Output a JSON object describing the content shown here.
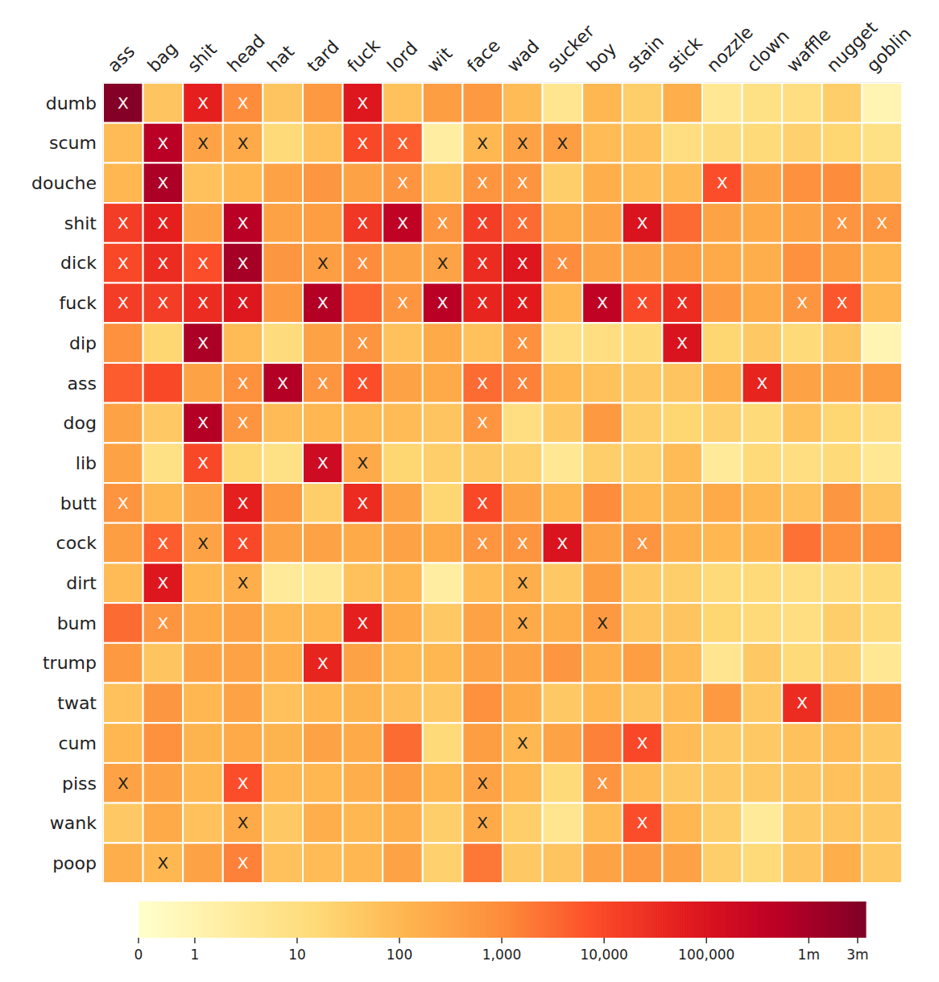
{
  "chart_data": {
    "type": "heatmap",
    "x": [
      "ass",
      "bag",
      "shit",
      "head",
      "hat",
      "tard",
      "fuck",
      "lord",
      "wit",
      "face",
      "wad",
      "sucker",
      "boy",
      "stain",
      "stick",
      "nozzle",
      "clown",
      "waffle",
      "nugget",
      "goblin"
    ],
    "y": [
      "dumb",
      "scum",
      "douche",
      "shit",
      "dick",
      "fuck",
      "dip",
      "ass",
      "dog",
      "lib",
      "butt",
      "cock",
      "dirt",
      "bum",
      "trump",
      "twat",
      "cum",
      "piss",
      "wank",
      "poop"
    ],
    "values": [
      [
        3000000,
        50,
        50000,
        1000,
        50,
        500,
        80000,
        60,
        400,
        500,
        80,
        5,
        100,
        30,
        150,
        4,
        8,
        10,
        30,
        1
      ],
      [
        80,
        500000,
        300,
        200,
        15,
        60,
        10000,
        5000,
        2,
        100,
        300,
        400,
        80,
        60,
        10,
        12,
        15,
        25,
        20,
        8
      ],
      [
        100,
        800000,
        60,
        100,
        300,
        600,
        300,
        700,
        60,
        700,
        700,
        30,
        150,
        80,
        80,
        8000,
        300,
        800,
        1000,
        50
      ],
      [
        15000,
        50000,
        300,
        500000,
        300,
        400,
        20000,
        400000,
        700,
        15000,
        3000,
        200,
        300,
        100000,
        3000,
        300,
        200,
        300,
        700,
        700
      ],
      [
        10000,
        30000,
        8000,
        1000000,
        600,
        400,
        1000,
        300,
        300,
        30000,
        80000,
        1000,
        300,
        300,
        400,
        200,
        150,
        800,
        400,
        100
      ],
      [
        15000,
        15000,
        30000,
        80000,
        500,
        600000,
        4000,
        700,
        500000,
        40000,
        60000,
        100,
        400000,
        10000,
        30000,
        500,
        200,
        700,
        6000,
        100
      ],
      [
        800,
        20,
        800000,
        80,
        12,
        300,
        700,
        60,
        200,
        60,
        800,
        10,
        10,
        15,
        100000,
        20,
        40,
        15,
        50,
        1
      ],
      [
        5000,
        10000,
        300,
        800,
        600000,
        700,
        8000,
        300,
        200,
        3000,
        1500,
        100,
        60,
        40,
        50,
        150,
        40000,
        300,
        300,
        400
      ],
      [
        300,
        40,
        600000,
        700,
        80,
        100,
        100,
        80,
        50,
        700,
        10,
        40,
        500,
        30,
        20,
        25,
        15,
        60,
        20,
        10
      ],
      [
        300,
        8,
        10000,
        20,
        8,
        200000,
        200,
        20,
        30,
        40,
        25,
        4,
        30,
        30,
        80,
        3,
        15,
        10,
        15,
        4
      ],
      [
        700,
        100,
        300,
        50000,
        500,
        30,
        30000,
        300,
        20,
        10000,
        300,
        100,
        1000,
        100,
        120,
        200,
        100,
        60,
        600,
        50
      ],
      [
        400,
        5000,
        300,
        10000,
        300,
        300,
        200,
        300,
        200,
        700,
        700,
        100000,
        300,
        700,
        150,
        100,
        100,
        2500,
        800,
        800
      ],
      [
        80,
        80000,
        100,
        150,
        3,
        4,
        60,
        100,
        2,
        80,
        150,
        40,
        400,
        40,
        30,
        15,
        15,
        10,
        12,
        15
      ],
      [
        3000,
        700,
        200,
        300,
        100,
        100,
        50000,
        200,
        40,
        300,
        200,
        150,
        500,
        50,
        50,
        20,
        15,
        10,
        30,
        15
      ],
      [
        500,
        50,
        300,
        300,
        150,
        40000,
        300,
        100,
        100,
        300,
        300,
        600,
        150,
        400,
        80,
        5,
        40,
        15,
        25,
        4
      ],
      [
        60,
        600,
        100,
        300,
        60,
        100,
        120,
        70,
        40,
        800,
        200,
        40,
        100,
        50,
        80,
        500,
        40,
        30000,
        300,
        300
      ],
      [
        100,
        800,
        120,
        200,
        120,
        300,
        200,
        3000,
        15,
        400,
        100,
        300,
        1500,
        10000,
        80,
        40,
        40,
        60,
        80,
        40
      ],
      [
        300,
        300,
        100,
        8000,
        100,
        100,
        150,
        400,
        100,
        300,
        100,
        15,
        700,
        80,
        40,
        40,
        40,
        50,
        60,
        50
      ],
      [
        40,
        200,
        60,
        200,
        40,
        150,
        100,
        150,
        30,
        200,
        30,
        5,
        80,
        8000,
        100,
        30,
        3,
        40,
        50,
        40
      ],
      [
        150,
        100,
        300,
        1500,
        60,
        80,
        100,
        300,
        25,
        2000,
        40,
        50,
        300,
        500,
        300,
        30,
        15,
        50,
        150,
        40
      ]
    ],
    "marked": [
      [
        1,
        0,
        1,
        1,
        0,
        0,
        1,
        0,
        0,
        0,
        0,
        0,
        0,
        0,
        0,
        0,
        0,
        0,
        0,
        0
      ],
      [
        0,
        1,
        1,
        1,
        0,
        0,
        1,
        1,
        0,
        1,
        1,
        1,
        0,
        0,
        0,
        0,
        0,
        0,
        0,
        0
      ],
      [
        0,
        1,
        0,
        0,
        0,
        0,
        0,
        1,
        0,
        1,
        1,
        0,
        0,
        0,
        0,
        1,
        0,
        0,
        0,
        0
      ],
      [
        1,
        1,
        0,
        1,
        0,
        0,
        1,
        1,
        1,
        1,
        1,
        0,
        0,
        1,
        0,
        0,
        0,
        0,
        1,
        1
      ],
      [
        1,
        1,
        1,
        1,
        0,
        1,
        1,
        0,
        1,
        1,
        1,
        1,
        0,
        0,
        0,
        0,
        0,
        0,
        0,
        0
      ],
      [
        1,
        1,
        1,
        1,
        0,
        1,
        0,
        1,
        1,
        1,
        1,
        0,
        1,
        1,
        1,
        0,
        0,
        1,
        1,
        0
      ],
      [
        0,
        0,
        1,
        0,
        0,
        0,
        1,
        0,
        0,
        0,
        1,
        0,
        0,
        0,
        1,
        0,
        0,
        0,
        0,
        0
      ],
      [
        0,
        0,
        0,
        1,
        1,
        1,
        1,
        0,
        0,
        1,
        1,
        0,
        0,
        0,
        0,
        0,
        1,
        0,
        0,
        0
      ],
      [
        0,
        0,
        1,
        1,
        0,
        0,
        0,
        0,
        0,
        1,
        0,
        0,
        0,
        0,
        0,
        0,
        0,
        0,
        0,
        0
      ],
      [
        0,
        0,
        1,
        0,
        0,
        1,
        1,
        0,
        0,
        0,
        0,
        0,
        0,
        0,
        0,
        0,
        0,
        0,
        0,
        0
      ],
      [
        1,
        0,
        0,
        1,
        0,
        0,
        1,
        0,
        0,
        1,
        0,
        0,
        0,
        0,
        0,
        0,
        0,
        0,
        0,
        0
      ],
      [
        0,
        1,
        1,
        1,
        0,
        0,
        0,
        0,
        0,
        1,
        1,
        1,
        0,
        1,
        0,
        0,
        0,
        0,
        0,
        0
      ],
      [
        0,
        1,
        0,
        1,
        0,
        0,
        0,
        0,
        0,
        0,
        1,
        0,
        0,
        0,
        0,
        0,
        0,
        0,
        0,
        0
      ],
      [
        0,
        1,
        0,
        0,
        0,
        0,
        1,
        0,
        0,
        0,
        1,
        0,
        1,
        0,
        0,
        0,
        0,
        0,
        0,
        0
      ],
      [
        0,
        0,
        0,
        0,
        0,
        1,
        0,
        0,
        0,
        0,
        0,
        0,
        0,
        0,
        0,
        0,
        0,
        0,
        0,
        0
      ],
      [
        0,
        0,
        0,
        0,
        0,
        0,
        0,
        0,
        0,
        0,
        0,
        0,
        0,
        0,
        0,
        0,
        0,
        1,
        0,
        0
      ],
      [
        0,
        0,
        0,
        0,
        0,
        0,
        0,
        0,
        0,
        0,
        1,
        0,
        0,
        1,
        0,
        0,
        0,
        0,
        0,
        0
      ],
      [
        1,
        0,
        0,
        1,
        0,
        0,
        0,
        0,
        0,
        1,
        0,
        0,
        1,
        0,
        0,
        0,
        0,
        0,
        0,
        0
      ],
      [
        0,
        0,
        0,
        1,
        0,
        0,
        0,
        0,
        0,
        1,
        0,
        0,
        0,
        1,
        0,
        0,
        0,
        0,
        0,
        0
      ],
      [
        0,
        1,
        0,
        1,
        0,
        0,
        0,
        0,
        0,
        0,
        0,
        0,
        0,
        0,
        0,
        0,
        0,
        0,
        0,
        0
      ]
    ],
    "mark_text": "X",
    "colorbar_lim": [
      0,
      3600000
    ],
    "colorbar_ticks": [
      0,
      1,
      10,
      100,
      {
        "value": 1000,
        "label": "1,000"
      },
      {
        "value": 10000,
        "label": "10,000"
      },
      {
        "value": 100000,
        "label": "100,000"
      },
      {
        "value": 1000000,
        "label": "1m"
      },
      {
        "value": 3000000,
        "label": "3m"
      }
    ]
  }
}
